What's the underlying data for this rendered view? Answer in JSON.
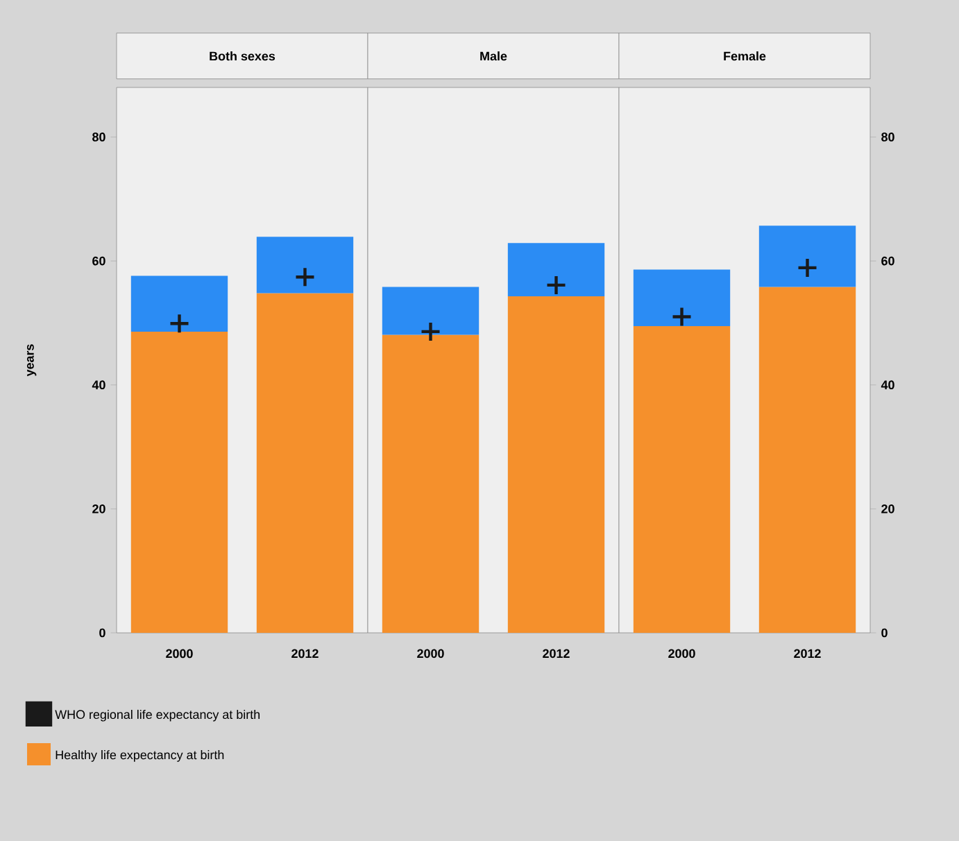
{
  "chart_data": [
    {
      "type": "bar",
      "title": "Both sexes",
      "categories": [
        "2000",
        "2012"
      ],
      "stacked": true,
      "ylabel": "years",
      "ylim": [
        0,
        88
      ],
      "yticks": [
        0,
        20,
        40,
        60,
        80
      ],
      "legend": "bottom",
      "series": [
        {
          "name": "Healthy life expectancy at birth",
          "color": "#f5902c",
          "values": [
            48.6,
            54.8
          ]
        },
        {
          "color": "#2b8cf4",
          "values": [
            9.0,
            9.1
          ]
        },
        {
          "name": "WHO regional life expectancy at birth",
          "type": "scatter",
          "marker": "cross",
          "color": "#1a1a1a",
          "values": [
            49.9,
            57.4
          ]
        }
      ]
    },
    {
      "type": "bar",
      "title": "Male",
      "categories": [
        "2000",
        "2012"
      ],
      "stacked": true,
      "ylim": [
        0,
        88
      ],
      "tick_labels": "x",
      "series": [
        {
          "color": "#f5902c",
          "values": [
            48.1,
            54.3
          ]
        },
        {
          "color": "#2b8cf4",
          "values": [
            7.7,
            8.6
          ]
        },
        {
          "type": "scatter",
          "marker": "cross",
          "color": "#1a1a1a",
          "values": [
            48.6,
            56.1
          ]
        }
      ]
    },
    {
      "type": "bar",
      "title": "Female",
      "categories": [
        "2000",
        "2012"
      ],
      "stacked": true,
      "ylim": [
        0,
        88
      ],
      "yticks": [
        0,
        20,
        40,
        60,
        80
      ],
      "series": [
        {
          "color": "#f5902c",
          "values": [
            49.5,
            55.8
          ]
        },
        {
          "color": "#2b8cf4",
          "values": [
            9.1,
            9.9
          ]
        },
        {
          "type": "scatter",
          "marker": "cross",
          "color": "#1a1a1a",
          "values": [
            51.0,
            58.9
          ]
        }
      ]
    }
  ]
}
